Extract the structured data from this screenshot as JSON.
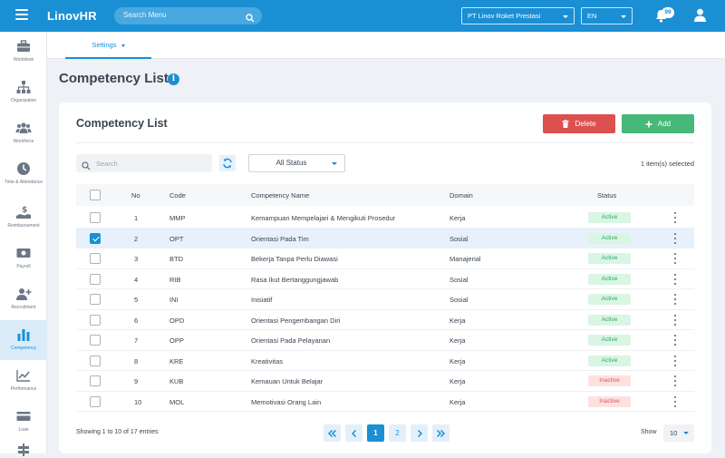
{
  "app": {
    "brand": "LinovHR"
  },
  "topbar": {
    "search_placeholder": "Search Menu",
    "company": "PT Linov Roket Prestasi",
    "language": "EN",
    "notification_count": "99"
  },
  "sidebar": {
    "items": [
      {
        "label": "Workdesk",
        "icon": "briefcase-icon"
      },
      {
        "label": "Organization",
        "icon": "org-chart-icon"
      },
      {
        "label": "Workforce",
        "icon": "people-icon"
      },
      {
        "label": "Time & Attendance",
        "icon": "clock-icon"
      },
      {
        "label": "Reimbursement",
        "icon": "reimbursement-icon"
      },
      {
        "label": "Payroll",
        "icon": "payroll-icon"
      },
      {
        "label": "Recruitment",
        "icon": "add-user-icon"
      },
      {
        "label": "Competency",
        "icon": "bar-chart-icon"
      },
      {
        "label": "Performance",
        "icon": "line-chart-icon"
      },
      {
        "label": "Loan",
        "icon": "card-icon"
      }
    ]
  },
  "subnav": {
    "tab": "Settings"
  },
  "page": {
    "title": "Competency List"
  },
  "card": {
    "title": "Competency List",
    "delete_label": "Delete",
    "add_label": "Add",
    "search_placeholder": "Search",
    "status_filter": "All Status",
    "selected_info": "1 item(s) selected"
  },
  "table": {
    "headers": {
      "no": "No",
      "code": "Code",
      "name": "Competency Name",
      "domain": "Domain",
      "status": "Status"
    },
    "rows": [
      {
        "no": "1",
        "code": "MMP",
        "name": "Kemampuan Mempelajari & Mengikuti Prosedur",
        "domain": "Kerja",
        "status": "Active",
        "checked": false
      },
      {
        "no": "2",
        "code": "OPT",
        "name": "Orientasi Pada Tim",
        "domain": "Sosial",
        "status": "Active",
        "checked": true
      },
      {
        "no": "3",
        "code": "BTD",
        "name": "Bekerja Tanpa Perlu Diawasi",
        "domain": "Manajerial",
        "status": "Active",
        "checked": false
      },
      {
        "no": "4",
        "code": "RIB",
        "name": "Rasa Ikut Bertanggungjawab",
        "domain": "Sosial",
        "status": "Active",
        "checked": false
      },
      {
        "no": "5",
        "code": "INI",
        "name": "Inisiatif",
        "domain": "Sosial",
        "status": "Active",
        "checked": false
      },
      {
        "no": "6",
        "code": "OPD",
        "name": "Orientasi Pengembangan Diri",
        "domain": "Kerja",
        "status": "Active",
        "checked": false
      },
      {
        "no": "7",
        "code": "OPP",
        "name": "Orientasi Pada Pelayanan",
        "domain": "Kerja",
        "status": "Active",
        "checked": false
      },
      {
        "no": "8",
        "code": "KRE",
        "name": "Kreativitas",
        "domain": "Kerja",
        "status": "Active",
        "checked": false
      },
      {
        "no": "9",
        "code": "KUB",
        "name": "Kemauan Untuk Belajar",
        "domain": "Kerja",
        "status": "Inactive",
        "checked": false
      },
      {
        "no": "10",
        "code": "MOL",
        "name": "Memotivasi Orang Lain",
        "domain": "Kerja",
        "status": "Inactive",
        "checked": false
      }
    ]
  },
  "footer": {
    "entries_info": "Showing 1 to 10 of 17 entries",
    "pages": [
      "1",
      "2"
    ],
    "current_page": "1",
    "show_label": "Show",
    "page_size": "10"
  }
}
